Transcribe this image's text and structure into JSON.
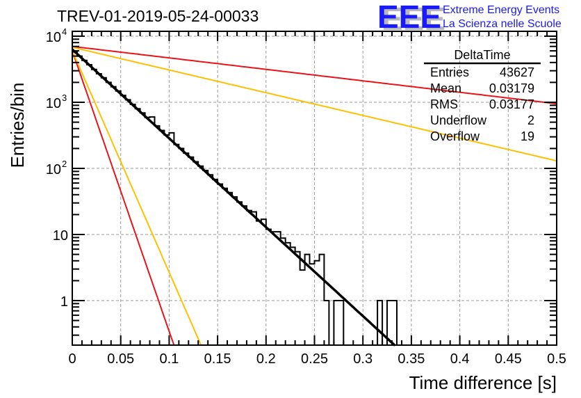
{
  "chart_data": {
    "type": "histogram",
    "title": "TREV-01-2019-05-24-00033",
    "xlabel": "Time difference [s]",
    "ylabel": "Entries/bin",
    "xlim": [
      0,
      0.5
    ],
    "ylim": [
      0.21,
      12000
    ],
    "yscale": "log",
    "grid": true,
    "x_ticks": [
      "0",
      "0.05",
      "0.1",
      "0.15",
      "0.2",
      "0.25",
      "0.3",
      "0.35",
      "0.4",
      "0.45",
      "0.5"
    ],
    "x_tick_values": [
      0,
      0.05,
      0.1,
      0.15,
      0.2,
      0.25,
      0.3,
      0.35,
      0.4,
      0.45,
      0.5
    ],
    "y_ticks": [
      {
        "value": 10000,
        "base": "10",
        "exp": "4"
      },
      {
        "value": 1000,
        "base": "10",
        "exp": "3"
      },
      {
        "value": 100,
        "base": "10",
        "exp": "2"
      },
      {
        "value": 10,
        "base": "10",
        "exp": ""
      },
      {
        "value": 1,
        "base": "1",
        "exp": ""
      }
    ],
    "bin_width": 0.005,
    "histogram": {
      "name": "DeltaTime",
      "bin_edges_start": 0,
      "values": [
        5800,
        5000,
        4300,
        3700,
        3150,
        2700,
        2350,
        2000,
        1720,
        1480,
        1270,
        1090,
        930,
        800,
        690,
        590,
        600,
        440,
        375,
        320,
        345,
        230,
        200,
        170,
        148,
        126,
        108,
        93,
        80,
        68,
        58,
        50,
        43,
        37,
        31,
        27,
        23,
        22,
        16,
        17,
        12,
        11,
        11,
        8.8,
        7.5,
        6.4,
        5.5,
        2.9,
        5,
        3.6,
        4,
        5,
        1,
        0,
        1,
        1,
        0,
        0,
        0,
        0,
        0,
        0,
        0,
        1,
        0,
        1,
        1,
        0,
        0,
        0,
        0,
        0,
        0,
        0,
        0,
        0,
        0,
        0,
        0,
        0,
        0,
        0,
        0,
        0,
        0,
        0,
        0,
        0,
        0,
        0,
        0,
        0,
        0,
        0,
        0,
        0,
        0,
        0,
        0,
        0
      ],
      "color": "#000000"
    },
    "series": [
      {
        "name": "fit",
        "type": "exponential",
        "y0": 6300,
        "y_at_x": [
          0.333,
          0.21
        ],
        "color": "#000000"
      },
      {
        "name": "red-steep",
        "type": "exponential",
        "y0": 6000,
        "y_at_x": [
          0.105,
          0.21
        ],
        "color": "#e8141a"
      },
      {
        "name": "yellow-steep",
        "type": "exponential",
        "y0": 6000,
        "y_at_x": [
          0.133,
          0.21
        ],
        "color": "#ffc000"
      },
      {
        "name": "red-shallow",
        "type": "exponential",
        "y0": 7000,
        "y_at_x": [
          0.5,
          950
        ],
        "color": "#e8141a"
      },
      {
        "name": "yellow-shallow",
        "type": "exponential",
        "y0": 6800,
        "y_at_x": [
          0.5,
          130
        ],
        "color": "#ffc000"
      }
    ],
    "stats_box": {
      "title": "DeltaTime",
      "rows": [
        {
          "label": "Entries",
          "value": "43627"
        },
        {
          "label": "Mean",
          "value": "0.03179"
        },
        {
          "label": "RMS",
          "value": "0.03177"
        },
        {
          "label": "Underflow",
          "value": "2"
        },
        {
          "label": "Overflow",
          "value": "19"
        }
      ],
      "placement": "top-right"
    }
  },
  "logo": {
    "letters": "EEE",
    "line1": "Extreme Energy Events",
    "line2": "La Scienza nelle Scuole",
    "color": "#1a1aff",
    "shadow_color": "#b0b0b0"
  }
}
